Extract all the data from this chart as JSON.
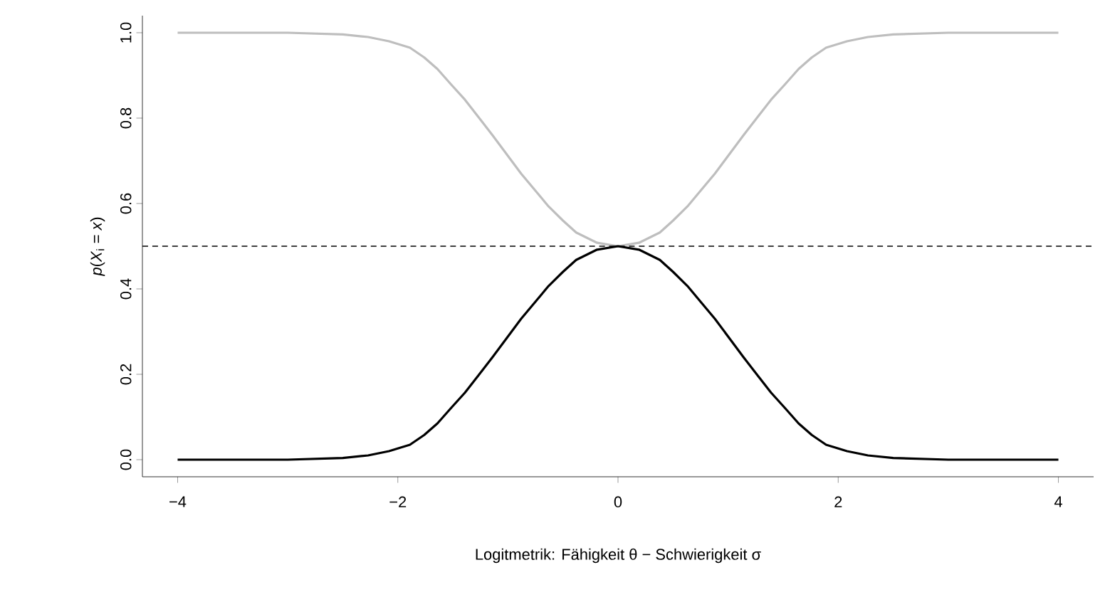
{
  "chart_data": {
    "type": "line",
    "xlabel": "Logitmetrik: Fähigkeit θ − Schwierigkeit σ",
    "ylabel": "*p*(*X*$_{i}$ = *x*)",
    "xlim": [
      -4.32,
      4.32
    ],
    "ylim": [
      -0.04,
      1.04
    ],
    "xticks": [
      {
        "value": -4,
        "label": "−4"
      },
      {
        "value": -2,
        "label": "−2"
      },
      0,
      2,
      4
    ],
    "yticks": [
      {
        "value": 0,
        "label": "0.0"
      },
      {
        "value": 0.2,
        "label": "0.2"
      },
      {
        "value": 0.4,
        "label": "0.4"
      },
      {
        "value": 0.6,
        "label": "0.6"
      },
      {
        "value": 0.8,
        "label": "0.8"
      },
      {
        "value": 1,
        "label": "1.0"
      }
    ],
    "grid": false,
    "marker": "none",
    "line_style": "solid",
    "x": [
      -4,
      -3,
      -2.5,
      -2.27,
      -2.08,
      -1.89,
      -1.76,
      -1.64,
      -1.52,
      -1.39,
      -1.26,
      -1.14,
      -1.01,
      -0.88,
      -0.75,
      -0.63,
      -0.5,
      -0.38,
      -0.19,
      0,
      0.19,
      0.38,
      0.5,
      0.63,
      0.75,
      0.88,
      1.01,
      1.14,
      1.26,
      1.39,
      1.52,
      1.64,
      1.76,
      1.89,
      2.08,
      2.27,
      2.5,
      3,
      4
    ],
    "series": [
      {
        "color": "#bebebe",
        "values": [
          1,
          1,
          0.996,
          0.99,
          0.98,
          0.965,
          0.942,
          0.915,
          0.88,
          0.843,
          0.8,
          0.76,
          0.715,
          0.67,
          0.63,
          0.593,
          0.56,
          0.532,
          0.508,
          0.5,
          0.508,
          0.532,
          0.56,
          0.593,
          0.63,
          0.67,
          0.715,
          0.76,
          0.8,
          0.843,
          0.88,
          0.915,
          0.942,
          0.965,
          0.98,
          0.99,
          0.996,
          1,
          1
        ]
      },
      {
        "color": "#000000",
        "values": [
          0,
          0,
          0.004,
          0.01,
          0.02,
          0.035,
          0.058,
          0.085,
          0.12,
          0.157,
          0.2,
          0.24,
          0.285,
          0.33,
          0.37,
          0.407,
          0.44,
          0.468,
          0.492,
          0.5,
          0.492,
          0.468,
          0.44,
          0.407,
          0.37,
          0.33,
          0.285,
          0.24,
          0.2,
          0.157,
          0.12,
          0.085,
          0.058,
          0.035,
          0.02,
          0.01,
          0.004,
          0,
          0
        ]
      }
    ],
    "ref_lines": [
      {
        "axis": "y",
        "value": 0.5,
        "color": "#000000",
        "line_style": "dashed"
      }
    ]
  }
}
